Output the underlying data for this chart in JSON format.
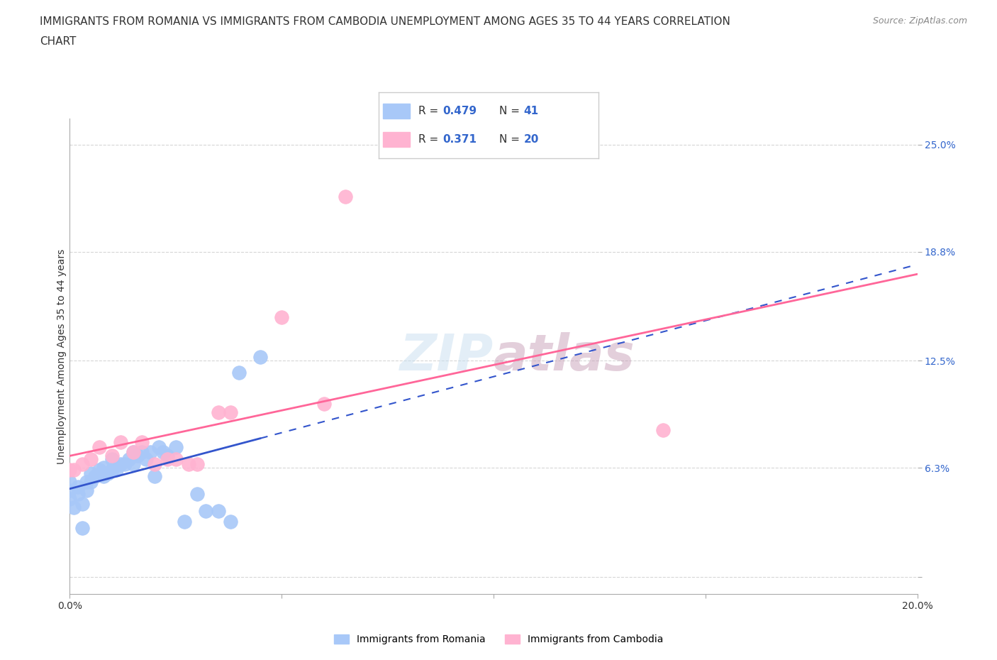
{
  "title_line1": "IMMIGRANTS FROM ROMANIA VS IMMIGRANTS FROM CAMBODIA UNEMPLOYMENT AMONG AGES 35 TO 44 YEARS CORRELATION",
  "title_line2": "CHART",
  "source": "Source: ZipAtlas.com",
  "ylabel": "Unemployment Among Ages 35 to 44 years",
  "xlim": [
    0.0,
    0.2
  ],
  "ylim": [
    -0.01,
    0.265
  ],
  "romania_dot_color": "#a8c8f8",
  "cambodia_dot_color": "#ffb3d1",
  "romania_trend_color": "#3355cc",
  "cambodia_trend_color": "#ff6699",
  "background_color": "#ffffff",
  "grid_color": "#cccccc",
  "ytick_color": "#3366cc",
  "xtick_color": "#333333",
  "ytick_positions": [
    0.0,
    0.063,
    0.125,
    0.188,
    0.25
  ],
  "yticklabels": [
    "",
    "6.3%",
    "12.5%",
    "18.8%",
    "25.0%"
  ],
  "xtick_positions": [
    0.0,
    0.05,
    0.1,
    0.15,
    0.2
  ],
  "xticklabels": [
    "0.0%",
    "",
    "",
    "",
    "20.0%"
  ],
  "legend_R_romania": "0.479",
  "legend_N_romania": "41",
  "legend_R_cambodia": "0.371",
  "legend_N_cambodia": "20",
  "romania_x": [
    0.0,
    0.0,
    0.0,
    0.001,
    0.002,
    0.002,
    0.003,
    0.003,
    0.004,
    0.004,
    0.005,
    0.005,
    0.006,
    0.007,
    0.008,
    0.008,
    0.009,
    0.01,
    0.01,
    0.011,
    0.012,
    0.013,
    0.014,
    0.015,
    0.015,
    0.016,
    0.017,
    0.018,
    0.019,
    0.02,
    0.021,
    0.022,
    0.023,
    0.025,
    0.027,
    0.03,
    0.032,
    0.035,
    0.038,
    0.04,
    0.045
  ],
  "romania_y": [
    0.045,
    0.05,
    0.055,
    0.04,
    0.048,
    0.052,
    0.028,
    0.042,
    0.05,
    0.055,
    0.055,
    0.06,
    0.058,
    0.062,
    0.058,
    0.063,
    0.06,
    0.062,
    0.068,
    0.062,
    0.065,
    0.065,
    0.068,
    0.065,
    0.072,
    0.07,
    0.072,
    0.068,
    0.072,
    0.058,
    0.075,
    0.072,
    0.07,
    0.075,
    0.032,
    0.048,
    0.038,
    0.038,
    0.032,
    0.118,
    0.127
  ],
  "cambodia_x": [
    0.0,
    0.001,
    0.003,
    0.005,
    0.007,
    0.01,
    0.012,
    0.015,
    0.017,
    0.02,
    0.023,
    0.025,
    0.028,
    0.03,
    0.035,
    0.038,
    0.05,
    0.06,
    0.065,
    0.14
  ],
  "cambodia_y": [
    0.062,
    0.062,
    0.065,
    0.068,
    0.075,
    0.07,
    0.078,
    0.072,
    0.078,
    0.065,
    0.068,
    0.068,
    0.065,
    0.065,
    0.095,
    0.095,
    0.15,
    0.1,
    0.22,
    0.085
  ]
}
